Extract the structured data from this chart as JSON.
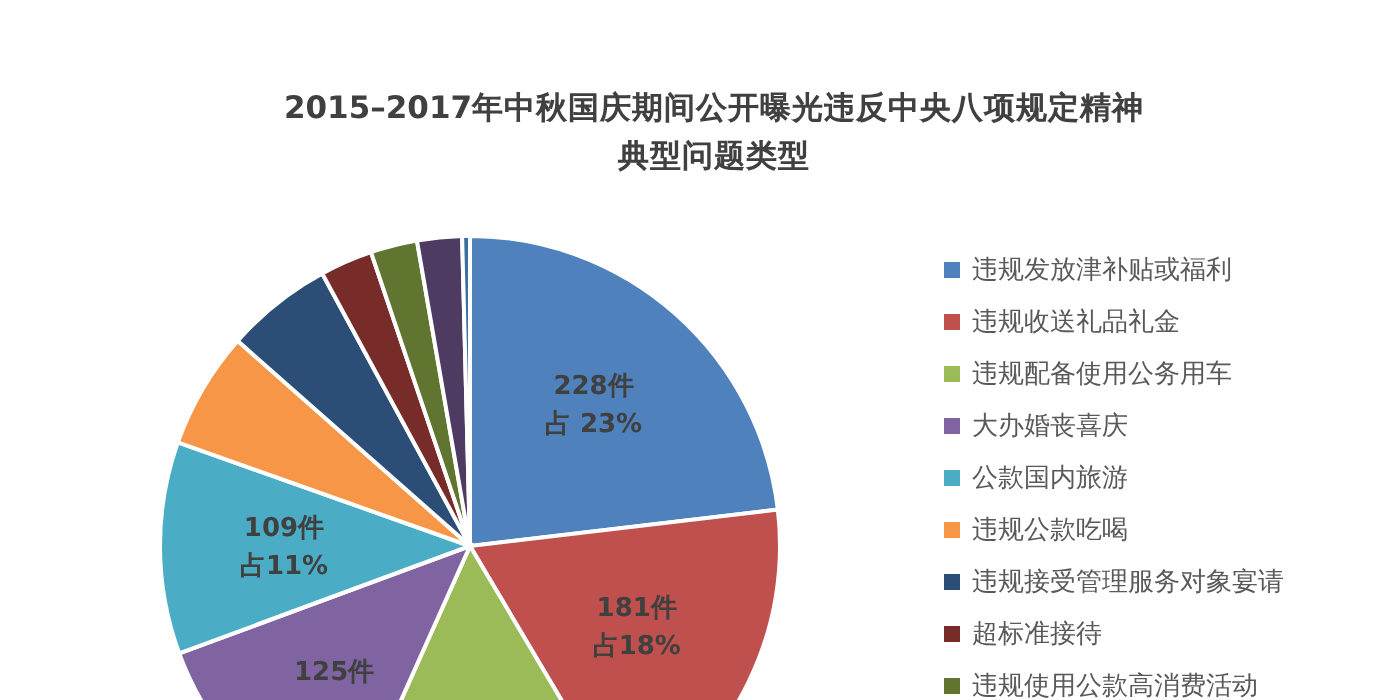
{
  "chart_data": {
    "type": "pie",
    "title": "2015–2017年中秋国庆期间公开曝光违反中央八项规定精神典型问题类型",
    "categories": [
      "违规发放津补贴或福利",
      "违规收送礼品礼金",
      "违规配备使用公务用车",
      "大办婚丧喜庆",
      "公款国内旅游",
      "违规公款吃喝",
      "违规接受管理服务对象宴请",
      "超标准接待",
      "违规使用公款高消费活动",
      null,
      null
    ],
    "values": [
      228,
      181,
      150,
      125,
      109,
      60,
      55,
      27,
      24,
      23,
      4
    ],
    "colors": [
      "#4f81bd",
      "#c0504d",
      "#9bbb59",
      "#8064a2",
      "#4bacc6",
      "#f79646",
      "#2c4d75",
      "#772c2a",
      "#5f7530",
      "#4d3b62",
      "#3b6fa0"
    ],
    "value_labels": [
      "228件占 23%",
      "181件占18%",
      null,
      "125件",
      "109件占11%",
      null,
      null,
      null,
      null,
      null,
      null
    ],
    "legend": "right"
  }
}
